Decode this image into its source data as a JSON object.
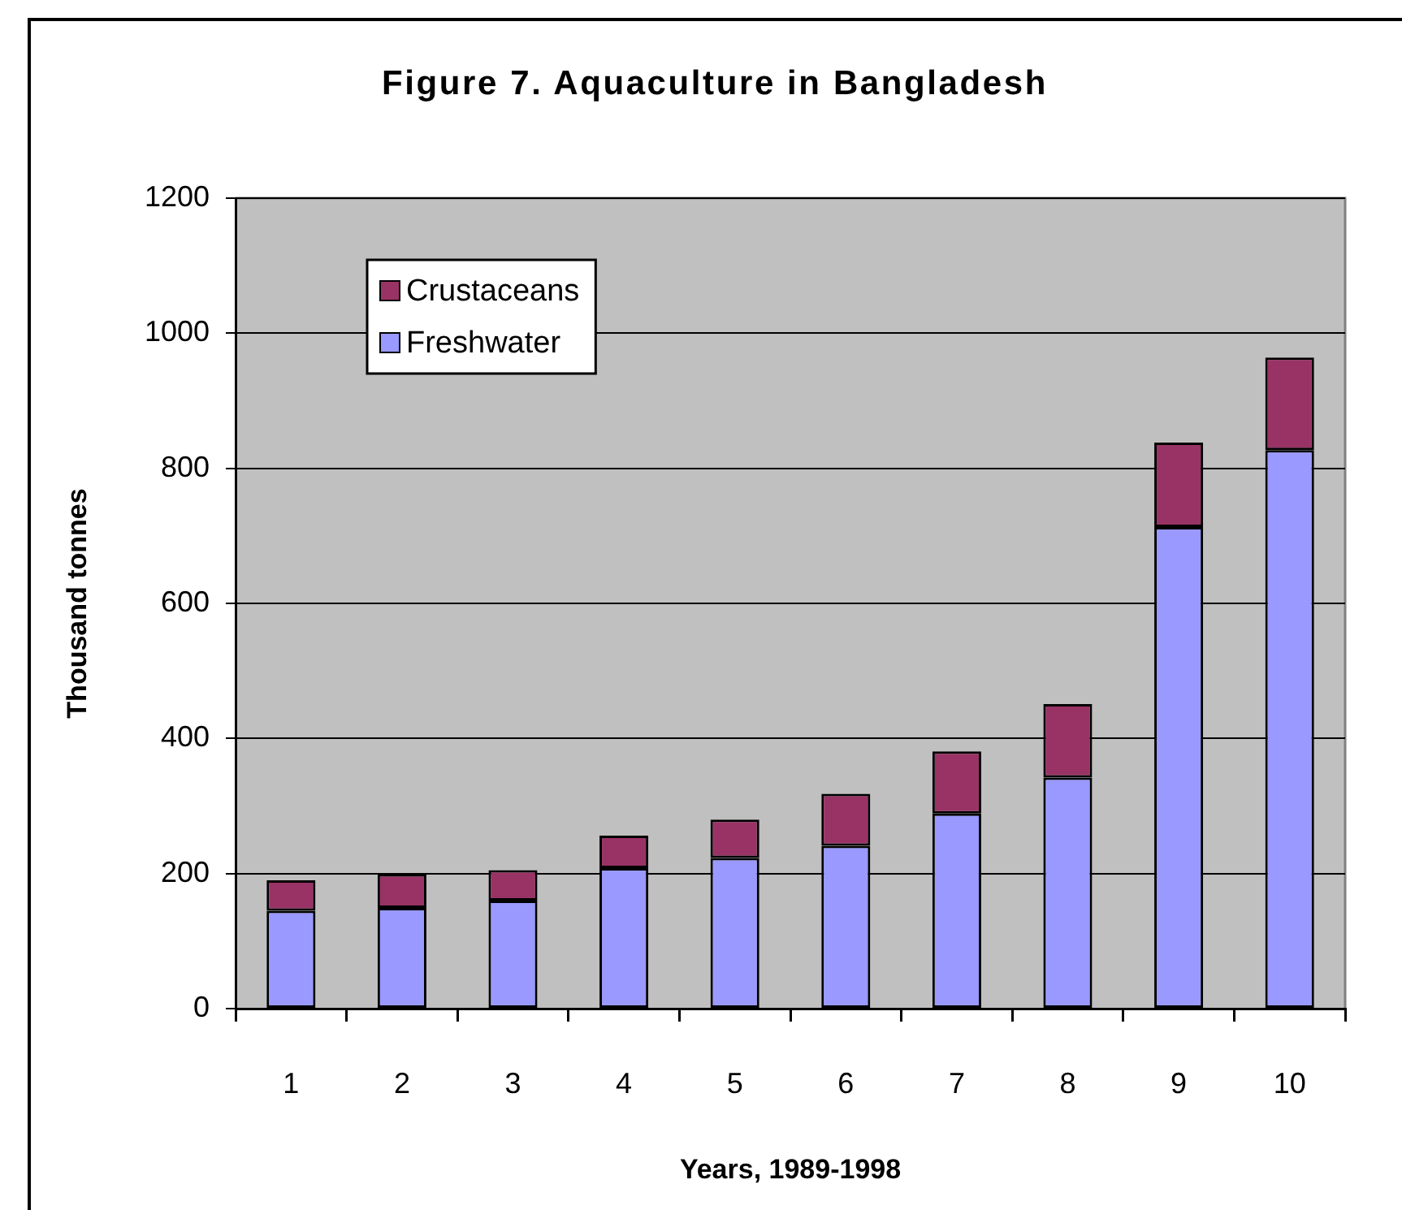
{
  "chart_data": {
    "type": "bar",
    "title": "Figure 7. Aquaculture in Bangladesh",
    "xlabel": "Years, 1989-1998",
    "ylabel": "Thousand tonnes",
    "categories": [
      "1",
      "2",
      "3",
      "4",
      "5",
      "6",
      "7",
      "8",
      "9",
      "10"
    ],
    "series": [
      {
        "name": "Freshwater",
        "color": "#9999ff",
        "values": [
          145,
          149,
          160,
          208,
          223,
          241,
          289,
          342,
          713,
          827
        ]
      },
      {
        "name": "Crustaceans",
        "color": "#993366",
        "values": [
          45,
          50,
          45,
          48,
          57,
          77,
          92,
          109,
          125,
          137
        ]
      }
    ],
    "stacked": true,
    "ylim": [
      0,
      1200
    ],
    "yticks": [
      0,
      200,
      400,
      600,
      800,
      1000,
      1200
    ],
    "grid": "y",
    "legend": "top left"
  }
}
